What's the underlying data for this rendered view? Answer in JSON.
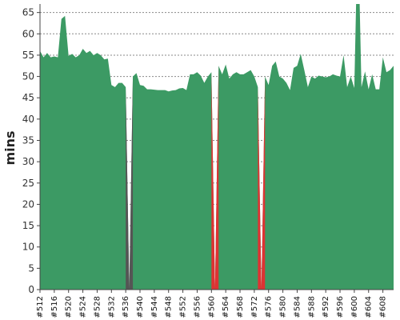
{
  "chart_data": {
    "type": "area",
    "title": "",
    "xlabel": "",
    "ylabel": "mins",
    "ylim": [
      0,
      67
    ],
    "xlim": [
      512,
      611
    ],
    "grid": true,
    "legend": "none",
    "y_ticks": [
      0,
      5,
      10,
      15,
      20,
      25,
      30,
      35,
      40,
      45,
      50,
      55,
      60,
      65
    ],
    "x_ticks": [
      "#512",
      "#516",
      "#520",
      "#524",
      "#528",
      "#532",
      "#536",
      "#540",
      "#544",
      "#548",
      "#552",
      "#556",
      "#560",
      "#564",
      "#568",
      "#572",
      "#576",
      "#580",
      "#584",
      "#588",
      "#592",
      "#596",
      "#600",
      "#604",
      "#608"
    ],
    "x_tick_values": [
      512,
      516,
      520,
      524,
      528,
      532,
      536,
      540,
      544,
      548,
      552,
      556,
      560,
      564,
      568,
      572,
      576,
      580,
      584,
      588,
      592,
      596,
      600,
      604,
      608
    ],
    "colors": {
      "success": "#3c9a64",
      "failure": "#dd3333",
      "aborted": "#555555",
      "grid": "#555555",
      "axis": "#444444"
    },
    "series": [
      {
        "values": [
          [
            512,
            56
          ],
          [
            513,
            54.5
          ],
          [
            514,
            55.5
          ],
          [
            515,
            54.5
          ],
          [
            516,
            54.7
          ],
          [
            517,
            54.5
          ],
          [
            518,
            63.5
          ],
          [
            519,
            64.2
          ],
          [
            520,
            54.8
          ],
          [
            521,
            55.3
          ],
          [
            522,
            54.5
          ],
          [
            523,
            55
          ],
          [
            524,
            56.5
          ],
          [
            525,
            55.5
          ],
          [
            526,
            56
          ],
          [
            527,
            55
          ],
          [
            528,
            55.5
          ],
          [
            529,
            55
          ],
          [
            530,
            54
          ],
          [
            531,
            54.2
          ],
          [
            532,
            48
          ],
          [
            533,
            47.5
          ],
          [
            534,
            48.5
          ],
          [
            535,
            48.5
          ],
          [
            536,
            47.5
          ],
          [
            537,
            0
          ],
          [
            538,
            50
          ],
          [
            539,
            50.8
          ],
          [
            540,
            48
          ],
          [
            541,
            47.8
          ],
          [
            542,
            47
          ],
          [
            543,
            47
          ],
          [
            544,
            46.9
          ],
          [
            545,
            46.8
          ],
          [
            546,
            46.8
          ],
          [
            547,
            46.8
          ],
          [
            548,
            46.5
          ],
          [
            549,
            46.7
          ],
          [
            550,
            46.8
          ],
          [
            551,
            47.2
          ],
          [
            552,
            47.3
          ],
          [
            553,
            46.8
          ],
          [
            554,
            50.5
          ],
          [
            555,
            50.5
          ],
          [
            556,
            51
          ],
          [
            557,
            50.2
          ],
          [
            558,
            48.5
          ],
          [
            559,
            50
          ],
          [
            560,
            51
          ],
          [
            561,
            0
          ],
          [
            562,
            52.5
          ],
          [
            563,
            50.5
          ],
          [
            564,
            52.8
          ],
          [
            565,
            49.5
          ],
          [
            566,
            50.5
          ],
          [
            567,
            51
          ],
          [
            568,
            50.5
          ],
          [
            569,
            50.5
          ],
          [
            570,
            51
          ],
          [
            571,
            51.5
          ],
          [
            572,
            50
          ],
          [
            573,
            47.5
          ],
          [
            574,
            0
          ],
          [
            575,
            50
          ],
          [
            576,
            48
          ],
          [
            577,
            52.5
          ],
          [
            578,
            53.5
          ],
          [
            579,
            50
          ],
          [
            580,
            49.5
          ],
          [
            581,
            48.5
          ],
          [
            582,
            46.8
          ],
          [
            583,
            52
          ],
          [
            584,
            52.5
          ],
          [
            585,
            55.3
          ],
          [
            586,
            51.5
          ],
          [
            587,
            47.5
          ],
          [
            588,
            50
          ],
          [
            589,
            49.5
          ],
          [
            590,
            50.2
          ],
          [
            591,
            50
          ],
          [
            592,
            49.8
          ],
          [
            593,
            50
          ],
          [
            594,
            50.5
          ],
          [
            595,
            50.2
          ],
          [
            596,
            50
          ],
          [
            597,
            55
          ],
          [
            598,
            47.5
          ],
          [
            599,
            50
          ],
          [
            600,
            47.3
          ],
          [
            600.5,
            67
          ],
          [
            601.5,
            67
          ],
          [
            602,
            47.5
          ],
          [
            603,
            51.2
          ],
          [
            604,
            47
          ],
          [
            605,
            50.5
          ],
          [
            606,
            47
          ],
          [
            607,
            47
          ],
          [
            608,
            54.5
          ],
          [
            609,
            51
          ],
          [
            610,
            51.5
          ],
          [
            611,
            52.5
          ]
        ]
      }
    ],
    "status_overlays": [
      {
        "status": "aborted",
        "from": 536,
        "to": 538
      },
      {
        "status": "failure",
        "from": 560,
        "to": 562
      },
      {
        "status": "failure",
        "from": 573,
        "to": 575
      }
    ]
  }
}
